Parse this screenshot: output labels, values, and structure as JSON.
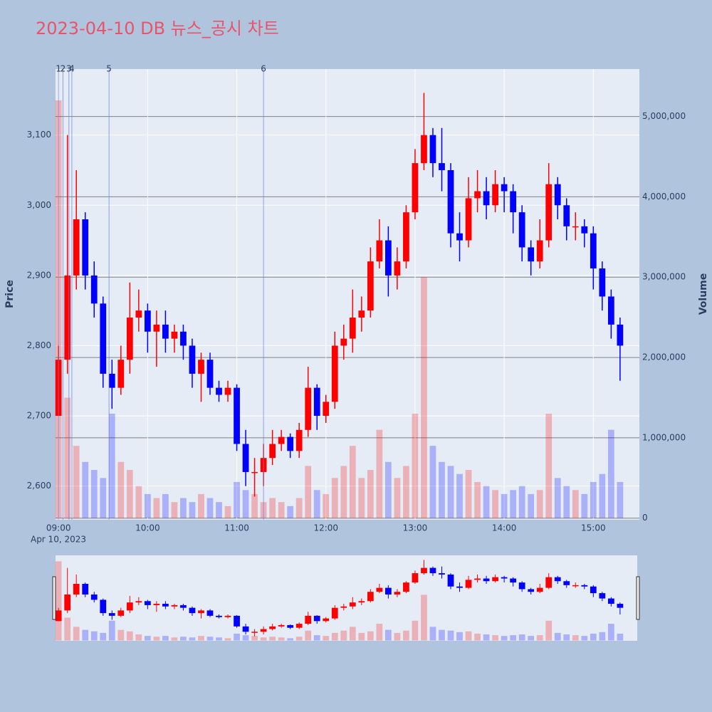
{
  "chart_data": {
    "type": "candlestick",
    "title": "2023-04-10 DB 뉴스_공시 차트",
    "ylabel": "Price",
    "y2label": "Volume",
    "x_date_label": "Apr 10, 2023",
    "up_color": "#ff0000",
    "down_color": "#0000ff",
    "x": [
      "2023-04-10 09:00",
      "2023-04-10 09:06",
      "2023-04-10 09:12",
      "2023-04-10 09:18",
      "2023-04-10 09:24",
      "2023-04-10 09:30",
      "2023-04-10 09:36",
      "2023-04-10 09:42",
      "2023-04-10 09:48",
      "2023-04-10 09:54",
      "2023-04-10 10:00",
      "2023-04-10 10:06",
      "2023-04-10 10:12",
      "2023-04-10 10:18",
      "2023-04-10 10:24",
      "2023-04-10 10:30",
      "2023-04-10 10:36",
      "2023-04-10 10:42",
      "2023-04-10 10:48",
      "2023-04-10 10:54",
      "2023-04-10 11:00",
      "2023-04-10 11:06",
      "2023-04-10 11:12",
      "2023-04-10 11:18",
      "2023-04-10 11:24",
      "2023-04-10 11:30",
      "2023-04-10 11:36",
      "2023-04-10 11:42",
      "2023-04-10 11:48",
      "2023-04-10 11:54",
      "2023-04-10 12:00",
      "2023-04-10 12:06",
      "2023-04-10 12:12",
      "2023-04-10 12:18",
      "2023-04-10 12:24",
      "2023-04-10 12:30",
      "2023-04-10 12:36",
      "2023-04-10 12:42",
      "2023-04-10 12:48",
      "2023-04-10 12:54",
      "2023-04-10 13:00",
      "2023-04-10 13:06",
      "2023-04-10 13:12",
      "2023-04-10 13:18",
      "2023-04-10 13:24",
      "2023-04-10 13:30",
      "2023-04-10 13:36",
      "2023-04-10 13:42",
      "2023-04-10 13:48",
      "2023-04-10 13:54",
      "2023-04-10 14:00",
      "2023-04-10 14:06",
      "2023-04-10 14:12",
      "2023-04-10 14:18",
      "2023-04-10 14:24",
      "2023-04-10 14:30",
      "2023-04-10 14:36",
      "2023-04-10 14:42",
      "2023-04-10 14:48",
      "2023-04-10 14:54",
      "2023-04-10 15:00",
      "2023-04-10 15:06",
      "2023-04-10 15:12",
      "2023-04-10 15:18"
    ],
    "open": [
      2700,
      2780,
      2900,
      2980,
      2900,
      2860,
      2760,
      2740,
      2780,
      2840,
      2850,
      2820,
      2830,
      2810,
      2820,
      2800,
      2760,
      2780,
      2740,
      2730,
      2740,
      2660,
      2620,
      2620,
      2640,
      2660,
      2670,
      2650,
      2680,
      2740,
      2700,
      2720,
      2800,
      2810,
      2840,
      2850,
      2920,
      2950,
      2900,
      2920,
      2990,
      3060,
      3100,
      3060,
      3050,
      2960,
      2950,
      3010,
      3020,
      3000,
      3030,
      3020,
      2990,
      2940,
      2920,
      2950,
      3030,
      3000,
      2970,
      2970,
      2960,
      2910,
      2870,
      2830
    ],
    "high": [
      2800,
      3100,
      3050,
      2990,
      2920,
      2870,
      2780,
      2800,
      2890,
      2880,
      2860,
      2850,
      2850,
      2830,
      2830,
      2810,
      2790,
      2790,
      2750,
      2750,
      2745,
      2680,
      2640,
      2660,
      2680,
      2680,
      2675,
      2690,
      2770,
      2745,
      2730,
      2820,
      2830,
      2880,
      2870,
      2940,
      2980,
      2970,
      2940,
      3000,
      3080,
      3160,
      3110,
      3110,
      3060,
      2990,
      3040,
      3050,
      3040,
      3050,
      3040,
      3030,
      3000,
      2950,
      2980,
      3060,
      3040,
      3010,
      2990,
      2980,
      2970,
      2920,
      2880,
      2840
    ],
    "low": [
      2700,
      2760,
      2880,
      2880,
      2840,
      2740,
      2710,
      2730,
      2760,
      2820,
      2790,
      2770,
      2790,
      2790,
      2780,
      2740,
      2720,
      2730,
      2720,
      2720,
      2650,
      2600,
      2585,
      2600,
      2630,
      2650,
      2640,
      2640,
      2670,
      2680,
      2690,
      2710,
      2780,
      2790,
      2820,
      2840,
      2910,
      2870,
      2880,
      2910,
      2980,
      3050,
      3040,
      3020,
      2940,
      2920,
      2940,
      2990,
      2980,
      2990,
      2990,
      2960,
      2920,
      2900,
      2910,
      2940,
      2980,
      2950,
      2950,
      2940,
      2880,
      2850,
      2810,
      2750
    ],
    "close": [
      2780,
      2900,
      2980,
      2900,
      2860,
      2760,
      2740,
      2780,
      2840,
      2850,
      2820,
      2830,
      2810,
      2820,
      2800,
      2760,
      2780,
      2740,
      2730,
      2740,
      2660,
      2620,
      2620,
      2640,
      2660,
      2670,
      2650,
      2680,
      2740,
      2700,
      2720,
      2800,
      2810,
      2840,
      2850,
      2920,
      2950,
      2900,
      2920,
      2990,
      3060,
      3100,
      3060,
      3050,
      2960,
      2950,
      3010,
      3020,
      3000,
      3030,
      3020,
      2990,
      2940,
      2920,
      2950,
      3030,
      3000,
      2970,
      2970,
      2960,
      2910,
      2870,
      2830,
      2800
    ],
    "volume": [
      5200000,
      1500000,
      900000,
      700000,
      600000,
      500000,
      1300000,
      700000,
      600000,
      400000,
      300000,
      250000,
      300000,
      200000,
      250000,
      200000,
      300000,
      250000,
      200000,
      150000,
      450000,
      350000,
      300000,
      200000,
      250000,
      200000,
      150000,
      250000,
      650000,
      350000,
      300000,
      500000,
      650000,
      900000,
      500000,
      600000,
      1100000,
      700000,
      500000,
      650000,
      1300000,
      3000000,
      900000,
      700000,
      650000,
      550000,
      600000,
      450000,
      400000,
      350000,
      300000,
      350000,
      400000,
      300000,
      350000,
      1300000,
      500000,
      400000,
      350000,
      300000,
      450000,
      550000,
      1100000,
      450000
    ],
    "xlim": [
      "2023-04-10 08:58",
      "2023-04-10 15:31"
    ],
    "xticks": [
      {
        "value": "2023-04-10 09:00",
        "label": "09:00"
      },
      {
        "value": "2023-04-10 10:00",
        "label": "10:00"
      },
      {
        "value": "2023-04-10 11:00",
        "label": "11:00"
      },
      {
        "value": "2023-04-10 12:00",
        "label": "12:00"
      },
      {
        "value": "2023-04-10 13:00",
        "label": "13:00"
      },
      {
        "value": "2023-04-10 14:00",
        "label": "14:00"
      },
      {
        "value": "2023-04-10 15:00",
        "label": "15:00"
      }
    ],
    "ylim": [
      2552,
      3194
    ],
    "yticks": [
      {
        "value": 2600,
        "label": "2,600"
      },
      {
        "value": 2700,
        "label": "2,700"
      },
      {
        "value": 2800,
        "label": "2,800"
      },
      {
        "value": 2900,
        "label": "2,900"
      },
      {
        "value": 3000,
        "label": "3,000"
      },
      {
        "value": 3100,
        "label": "3,100"
      }
    ],
    "y2lim": [
      -20000,
      5590000
    ],
    "y2ticks": [
      0,
      {
        "value": 1000000,
        "label": "1,000,000"
      },
      {
        "value": 2000000,
        "label": "2,000,000"
      },
      {
        "value": 3000000,
        "label": "3,000,000"
      },
      {
        "value": 4000000,
        "label": "4,000,000"
      },
      {
        "value": 5000000,
        "label": "5,000,000"
      }
    ],
    "news": [
      {
        "label": "1",
        "time": "2023-04-10 09:00"
      },
      {
        "label": "2",
        "time": "2023-04-10 09:03"
      },
      {
        "label": "3",
        "time": "2023-04-10 09:07"
      },
      {
        "label": "4",
        "time": "2023-04-10 09:09"
      },
      {
        "label": "5",
        "time": "2023-04-10 09:34"
      },
      {
        "label": "6",
        "time": "2023-04-10 11:18"
      }
    ],
    "range_slider": true
  }
}
